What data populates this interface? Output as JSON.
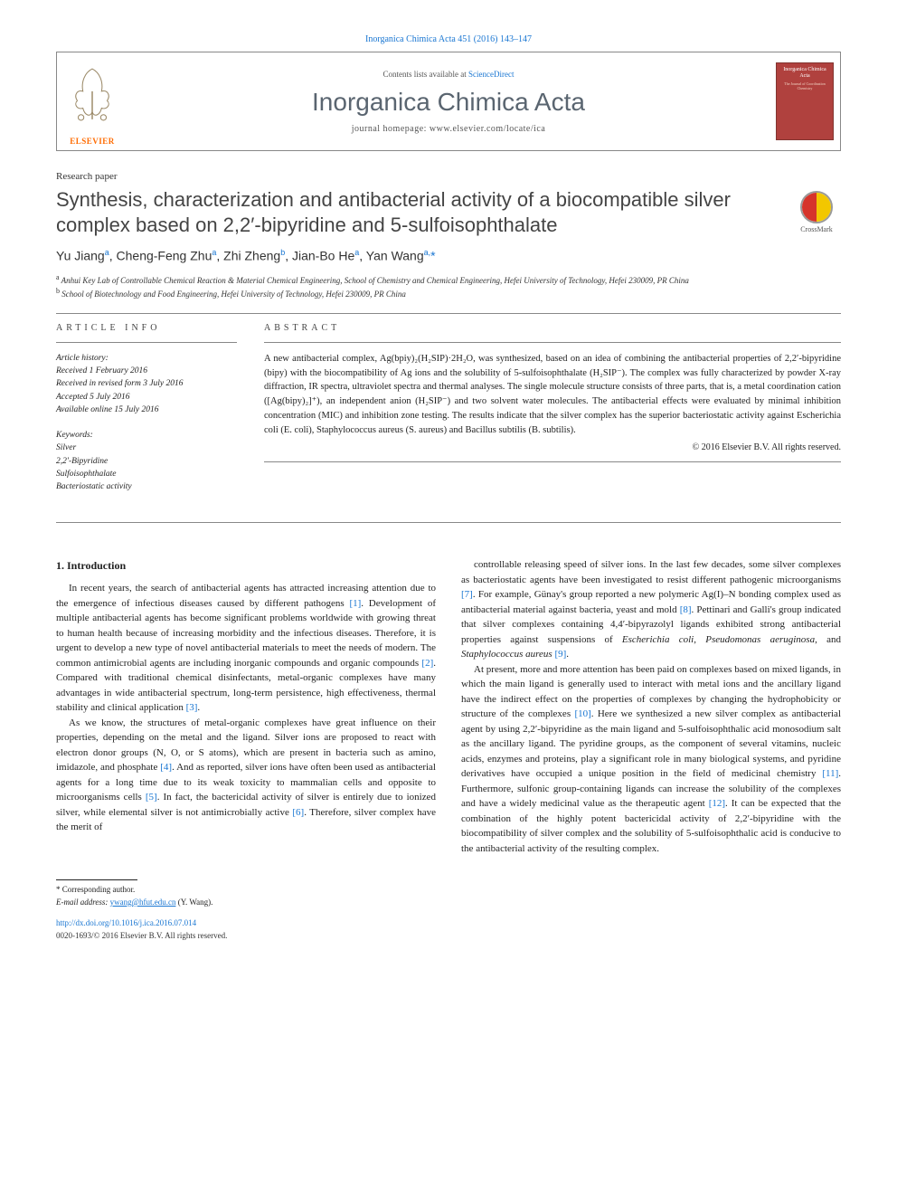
{
  "citation": "Inorganica Chimica Acta 451 (2016) 143–147",
  "header": {
    "contents_prefix": "Contents lists available at ",
    "contents_link": "ScienceDirect",
    "journal": "Inorganica Chimica Acta",
    "homepage_label": "journal homepage: ",
    "homepage_url": "www.elsevier.com/locate/ica",
    "publisher_label": "ELSEVIER",
    "cover_title": "Inorganica Chimica Acta",
    "cover_sub": "The Journal of Coordination Chemistry"
  },
  "article_type": "Research paper",
  "title": "Synthesis, characterization and antibacterial activity of a biocompatible silver complex based on 2,2′-bipyridine and 5-sulfoisophthalate",
  "crossmark_label": "CrossMark",
  "authors_html": "Yu Jiang<sup>a</sup>, Cheng-Feng Zhu<sup>a</sup>, Zhi Zheng<sup>b</sup>, Jian-Bo He<sup>a</sup>, Yan Wang<sup>a,</sup><span class='star'>*</span>",
  "affiliations": {
    "a": "Anhui Key Lab of Controllable Chemical Reaction & Material Chemical Engineering, School of Chemistry and Chemical Engineering, Hefei University of Technology, Hefei 230009, PR China",
    "b": "School of Biotechnology and Food Engineering, Hefei University of Technology, Hefei 230009, PR China"
  },
  "info": {
    "heading": "article info",
    "history_head": "Article history:",
    "history": [
      "Received 1 February 2016",
      "Received in revised form 3 July 2016",
      "Accepted 5 July 2016",
      "Available online 15 July 2016"
    ],
    "keywords_head": "Keywords:",
    "keywords": [
      "Silver",
      "2,2′-Bipyridine",
      "Sulfoisophthalate",
      "Bacteriostatic activity"
    ]
  },
  "abstract": {
    "heading": "abstract",
    "text": "A new antibacterial complex, Ag(bpiy)₂(H₂SIP)·2H₂O, was synthesized, based on an idea of combining the antibacterial properties of 2,2′-bipyridine (bipy) with the biocompatibility of Ag ions and the solubility of 5-sulfoisophthalate (H₂SIP⁻). The complex was fully characterized by powder X-ray diffraction, IR spectra, ultraviolet spectra and thermal analyses. The single molecule structure consists of three parts, that is, a metal coordination cation ([Ag(bipy)₂]⁺), an independent anion (H₂SIP⁻) and two solvent water molecules. The antibacterial effects were evaluated by minimal inhibition concentration (MIC) and inhibition zone testing. The results indicate that the silver complex has the superior bacteriostatic activity against Escherichia coli (E. coli), Staphylococcus aureus (S. aureus) and Bacillus subtilis (B. subtilis).",
    "copyright": "© 2016 Elsevier B.V. All rights reserved."
  },
  "body": {
    "section_number": "1.",
    "section_title": "Introduction",
    "p1": "In recent years, the search of antibacterial agents has attracted increasing attention due to the emergence of infectious diseases caused by different pathogens [1]. Development of multiple antibacterial agents has become significant problems worldwide with growing threat to human health because of increasing morbidity and the infectious diseases. Therefore, it is urgent to develop a new type of novel antibacterial materials to meet the needs of modern. The common antimicrobial agents are including inorganic compounds and organic compounds [2]. Compared with traditional chemical disinfectants, metal-organic complexes have many advantages in wide antibacterial spectrum, long-term persistence, high effectiveness, thermal stability and clinical application [3].",
    "p2": "As we know, the structures of metal-organic complexes have great influence on their properties, depending on the metal and the ligand. Silver ions are proposed to react with electron donor groups (N, O, or S atoms), which are present in bacteria such as amino, imidazole, and phosphate [4]. And as reported, silver ions have often been used as antibacterial agents for a long time due to its weak toxicity to mammalian cells and opposite to microorganisms cells [5]. In fact, the bactericidal activity of silver is entirely due to ionized silver, while elemental silver is not antimicrobially active [6]. Therefore, silver complex have the merit of",
    "p3": "controllable releasing speed of silver ions. In the last few decades, some silver complexes as bacteriostatic agents have been investigated to resist different pathogenic microorganisms [7]. For example, Günay's group reported a new polymeric Ag(I)–N bonding complex used as antibacterial material against bacteria, yeast and mold [8]. Pettinari and Galli's group indicated that silver complexes containing 4,4′-bipyrazolyl ligands exhibited strong antibacterial properties against suspensions of Escherichia coli, Pseudomonas aeruginosa, and Staphylococcus aureus [9].",
    "p4": "At present, more and more attention has been paid on complexes based on mixed ligands, in which the main ligand is generally used to interact with metal ions and the ancillary ligand have the indirect effect on the properties of complexes by changing the hydrophobicity or structure of the complexes [10]. Here we synthesized a new silver complex as antibacterial agent by using 2,2′-bipyridine as the main ligand and 5-sulfoisophthalic acid monosodium salt as the ancillary ligand. The pyridine groups, as the component of several vitamins, nucleic acids, enzymes and proteins, play a significant role in many biological systems, and pyridine derivatives have occupied a unique position in the field of medicinal chemistry [11]. Furthermore, sulfonic group-containing ligands can increase the solubility of the complexes and have a widely medicinal value as the therapeutic agent [12]. It can be expected that the combination of the highly potent bactericidal activity of 2,2′-bipyridine with the biocompatibility of silver complex and the solubility of 5-sulfoisophthalic acid is conducive to the antibacterial activity of the resulting complex."
  },
  "footer": {
    "corr_label": "* Corresponding author.",
    "email_label": "E-mail address: ",
    "email": "ywang@hfut.edu.cn",
    "email_name": " (Y. Wang).",
    "doi": "http://dx.doi.org/10.1016/j.ica.2016.07.014",
    "issn": "0020-1693/© 2016 Elsevier B.V. All rights reserved."
  },
  "colors": {
    "link": "#1976d2",
    "elsevier_orange": "#ff6b00",
    "cover_bg": "#b0413e",
    "journal_gray": "#5a6570"
  }
}
